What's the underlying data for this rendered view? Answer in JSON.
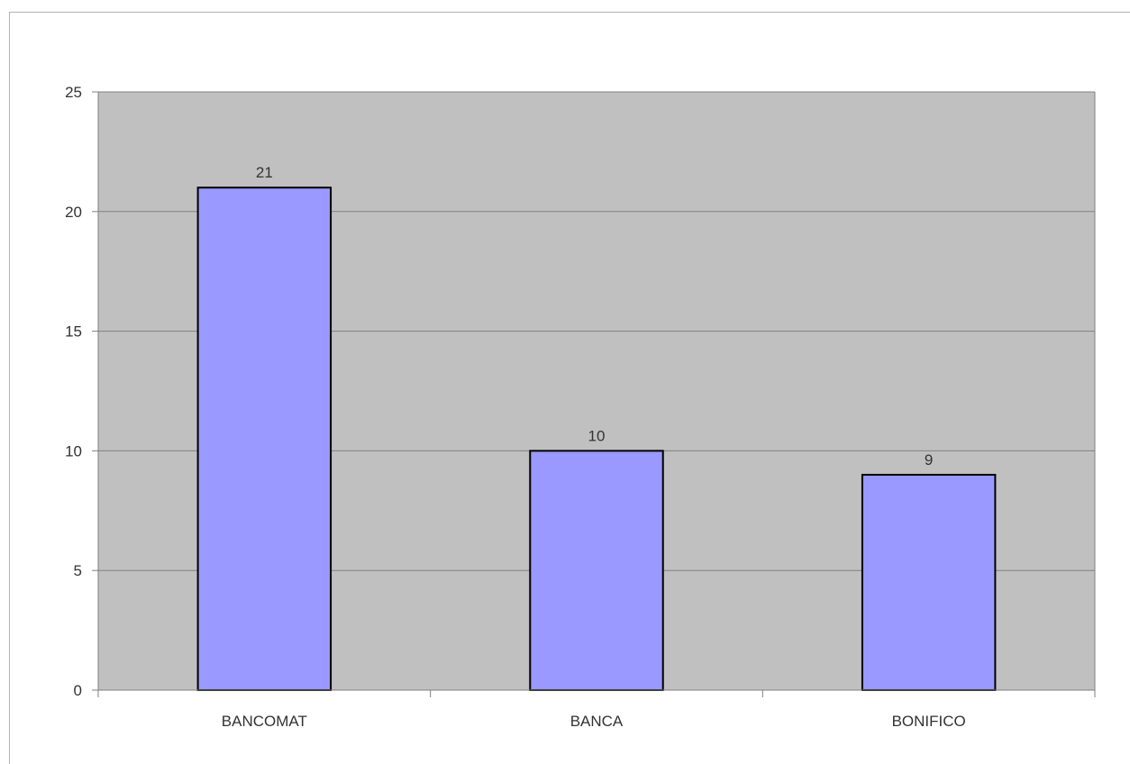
{
  "chart_data": {
    "type": "bar",
    "categories": [
      "BANCOMAT",
      "BANCA",
      "BONIFICO"
    ],
    "values": [
      21,
      10,
      9
    ],
    "ylim": [
      0,
      25
    ],
    "yticks": [
      0,
      5,
      10,
      15,
      20,
      25
    ],
    "grid": true,
    "data_labels": true,
    "legend": "none"
  },
  "colors": {
    "plot_background": "#c0c0c0",
    "bar_fill": "#9999ff",
    "bar_stroke": "#000000",
    "grid": "#808080",
    "axis": "#808080",
    "text": "#333333"
  }
}
